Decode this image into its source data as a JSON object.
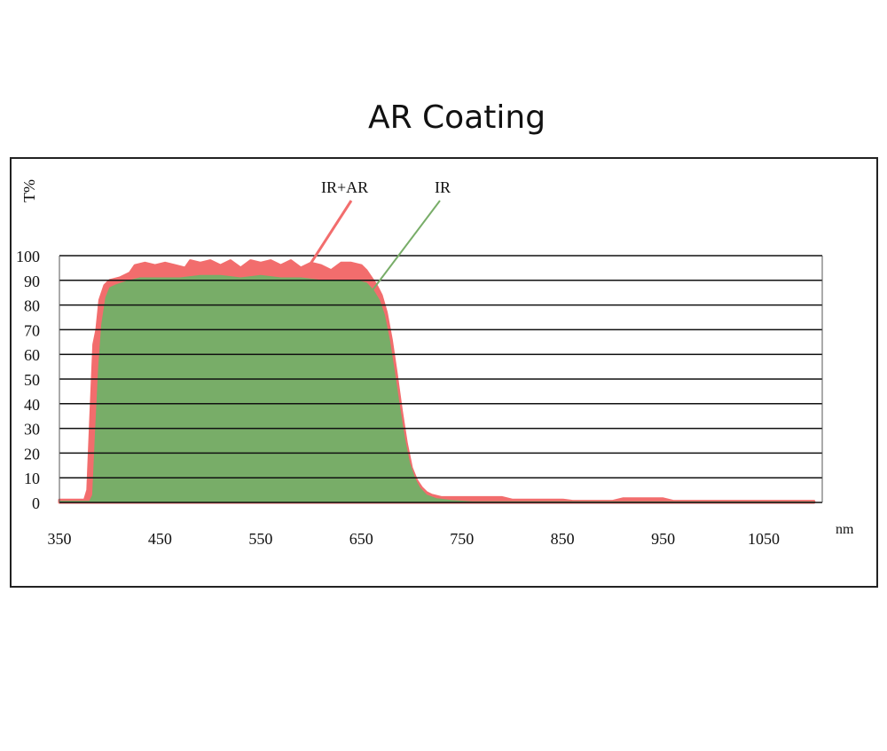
{
  "chart_data": {
    "type": "area",
    "title": "AR Coating",
    "xlabel": "nm",
    "ylabel": "T%",
    "xlim": [
      350,
      1100
    ],
    "ylim": [
      0,
      100
    ],
    "x_ticks": [
      350,
      450,
      550,
      650,
      750,
      850,
      950,
      1050
    ],
    "y_ticks": [
      0,
      10,
      20,
      30,
      40,
      50,
      60,
      70,
      80,
      90,
      100
    ],
    "grid": "horizontal",
    "colors": {
      "ir_ar": "#f26d6d",
      "ir": "#78ad68",
      "grid": "#111111"
    },
    "series": [
      {
        "name": "IR+AR",
        "color": "#f26d6d",
        "points": [
          [
            350,
            1
          ],
          [
            375,
            1
          ],
          [
            378,
            5
          ],
          [
            381,
            35
          ],
          [
            384,
            64
          ],
          [
            387,
            70
          ],
          [
            390,
            82
          ],
          [
            395,
            88
          ],
          [
            400,
            90
          ],
          [
            410,
            91
          ],
          [
            420,
            93
          ],
          [
            425,
            96
          ],
          [
            435,
            97
          ],
          [
            445,
            96
          ],
          [
            455,
            97
          ],
          [
            465,
            96
          ],
          [
            475,
            95
          ],
          [
            480,
            98
          ],
          [
            490,
            97
          ],
          [
            500,
            98
          ],
          [
            510,
            96
          ],
          [
            520,
            98
          ],
          [
            530,
            95
          ],
          [
            540,
            98
          ],
          [
            550,
            97
          ],
          [
            560,
            98
          ],
          [
            570,
            96
          ],
          [
            580,
            98
          ],
          [
            590,
            95
          ],
          [
            600,
            97
          ],
          [
            610,
            96
          ],
          [
            620,
            94
          ],
          [
            630,
            97
          ],
          [
            640,
            97
          ],
          [
            650,
            96
          ],
          [
            655,
            94
          ],
          [
            660,
            91
          ],
          [
            665,
            88
          ],
          [
            670,
            84
          ],
          [
            675,
            77
          ],
          [
            680,
            66
          ],
          [
            685,
            52
          ],
          [
            690,
            37
          ],
          [
            695,
            24
          ],
          [
            700,
            14
          ],
          [
            705,
            9
          ],
          [
            710,
            6
          ],
          [
            715,
            4
          ],
          [
            720,
            3
          ],
          [
            730,
            2
          ],
          [
            750,
            2
          ],
          [
            790,
            2
          ],
          [
            800,
            1
          ],
          [
            850,
            1
          ],
          [
            860,
            0.5
          ],
          [
            900,
            0.5
          ],
          [
            910,
            1.5
          ],
          [
            950,
            1.5
          ],
          [
            960,
            0.5
          ],
          [
            1100,
            0.5
          ]
        ]
      },
      {
        "name": "IR",
        "color": "#78ad68",
        "points": [
          [
            350,
            0.5
          ],
          [
            380,
            0.5
          ],
          [
            383,
            3
          ],
          [
            386,
            30
          ],
          [
            389,
            55
          ],
          [
            392,
            72
          ],
          [
            396,
            83
          ],
          [
            400,
            87
          ],
          [
            405,
            88
          ],
          [
            412,
            89
          ],
          [
            420,
            90
          ],
          [
            430,
            91
          ],
          [
            450,
            91
          ],
          [
            470,
            91
          ],
          [
            490,
            92
          ],
          [
            510,
            92
          ],
          [
            530,
            91
          ],
          [
            550,
            92
          ],
          [
            570,
            91
          ],
          [
            590,
            91
          ],
          [
            610,
            90
          ],
          [
            630,
            90
          ],
          [
            645,
            90
          ],
          [
            655,
            89
          ],
          [
            662,
            86
          ],
          [
            668,
            82
          ],
          [
            673,
            76
          ],
          [
            678,
            66
          ],
          [
            683,
            53
          ],
          [
            688,
            39
          ],
          [
            693,
            26
          ],
          [
            698,
            16
          ],
          [
            703,
            10
          ],
          [
            708,
            6
          ],
          [
            715,
            3
          ],
          [
            725,
            1.5
          ],
          [
            740,
            0.8
          ],
          [
            760,
            0.3
          ],
          [
            1100,
            0.2
          ]
        ]
      }
    ],
    "annotations": [
      {
        "text": "IR+AR",
        "series": "IR+AR",
        "anchor_x": 600
      },
      {
        "text": "IR",
        "series": "IR",
        "anchor_x": 660
      }
    ]
  }
}
